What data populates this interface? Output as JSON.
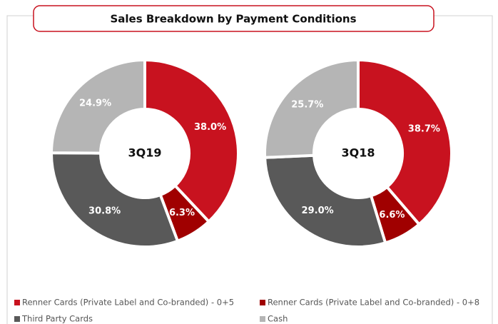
{
  "title": "Sales Breakdown by Payment Conditions",
  "categories": [
    "Renner Cards (Private Label and Co-branded) - 0+5",
    "Renner Cards (Private Label and Co-branded) - 0+8",
    "Third Party Cards",
    "Cash"
  ],
  "colors": [
    "#c8121f",
    "#a00000",
    "#595959",
    "#b5b5b5"
  ],
  "chart_data": [
    {
      "type": "donut",
      "label": "3Q19",
      "values": [
        38,
        6.3,
        30.8,
        24.9
      ],
      "value_labels": [
        "38.0%",
        "6.3%",
        "30.8%",
        "24.9%"
      ]
    },
    {
      "type": "donut",
      "label": "3Q18",
      "values": [
        38.7,
        6.6,
        29,
        25.7
      ],
      "value_labels": [
        "38.7%",
        "6.6%",
        "29.0%",
        "25.7%"
      ]
    }
  ]
}
